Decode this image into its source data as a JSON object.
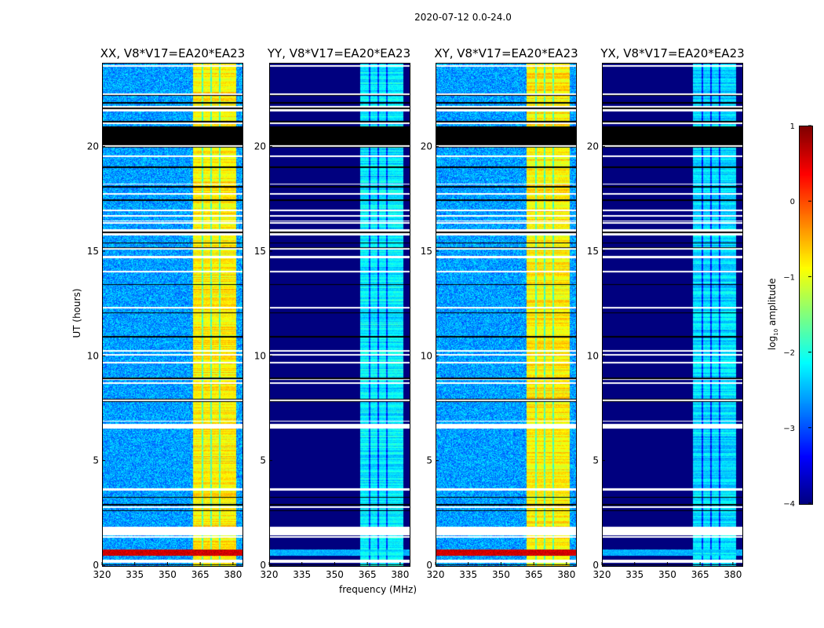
{
  "suptitle": "2020-07-12 0.0-24.0",
  "chart_data": {
    "type": "heatmap",
    "xlabel": "frequency (MHz)",
    "ylabel": "UT (hours)",
    "xlim": [
      320,
      384
    ],
    "ylim": [
      0,
      24
    ],
    "xticks": [
      "320",
      "335",
      "350",
      "365",
      "380"
    ],
    "yticks": [
      "0",
      "5",
      "10",
      "15",
      "20"
    ],
    "colorbar": {
      "label_pre": "log",
      "label_sub": "10",
      "label_post": " amplitude",
      "range": [
        -4,
        1
      ],
      "ticks": [
        "1",
        "0",
        "−1",
        "−2",
        "−3",
        "−4"
      ],
      "colormap": "jet"
    },
    "band_mhz": [
      361,
      381
    ],
    "band_gaps_mhz": [
      365.5,
      369.5,
      373.5
    ],
    "flagged_white_hours": [
      [
        0.15,
        0.3
      ],
      [
        1.5,
        1.8
      ],
      [
        6.6,
        6.8
      ],
      [
        15.8,
        16.1
      ],
      [
        21.8,
        22.0
      ]
    ],
    "flagged_black_hours": [
      [
        20.0,
        21.0
      ]
    ],
    "panels": [
      {
        "title": "XX, V8*V17=EA20*EA23",
        "background_log_amp": -2.6,
        "band_log_amp": -0.8,
        "rfi_hours_log_amp": [
          [
            0.5,
            0.8,
            0.6
          ]
        ]
      },
      {
        "title": "YY, V8*V17=EA20*EA23",
        "background_log_amp": -4.0,
        "band_log_amp": -2.2,
        "rfi_hours_log_amp": [
          [
            0.5,
            0.8,
            -2.5
          ]
        ]
      },
      {
        "title": "XY, V8*V17=EA20*EA23",
        "background_log_amp": -2.6,
        "band_log_amp": -0.8,
        "rfi_hours_log_amp": [
          [
            0.5,
            0.8,
            0.6
          ]
        ]
      },
      {
        "title": "YX, V8*V17=EA20*EA23",
        "background_log_amp": -4.0,
        "band_log_amp": -2.3,
        "rfi_hours_log_amp": [
          [
            0.5,
            0.8,
            -2.5
          ]
        ]
      }
    ]
  }
}
